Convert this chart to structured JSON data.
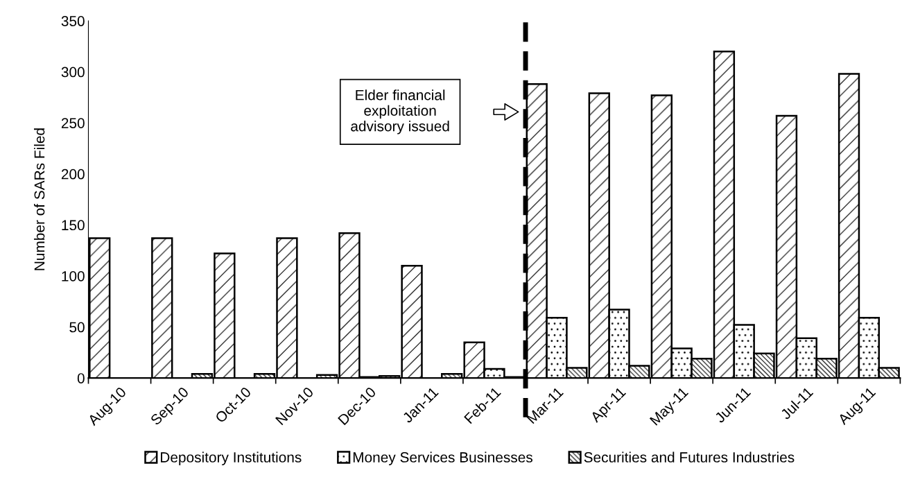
{
  "chart_data": {
    "type": "bar",
    "categories": [
      "Aug-10",
      "Sep-10",
      "Oct-10",
      "Nov-10",
      "Dec-10",
      "Jan-11",
      "Feb-11",
      "Mar-11",
      "Apr-11",
      "May-11",
      "Jun-11",
      "Jul-11",
      "Aug-11"
    ],
    "series": [
      {
        "name": "Depository Institutions",
        "color": "#000000",
        "values": [
          137,
          137,
          122,
          137,
          142,
          110,
          35,
          288,
          279,
          277,
          320,
          257,
          298
        ]
      },
      {
        "name": "Money Services Businesses",
        "color": "#000000",
        "values": [
          0,
          0,
          0,
          0,
          1,
          0,
          9,
          59,
          67,
          29,
          52,
          39,
          59
        ]
      },
      {
        "name": "Securities and Futures Industries",
        "color": "#000000",
        "values": [
          0,
          4,
          4,
          3,
          2,
          4,
          1,
          10,
          12,
          19,
          24,
          19,
          10
        ]
      }
    ],
    "ylabel": "Number of SARs Filed",
    "ylim": [
      0,
      350
    ],
    "yticks": [
      0,
      50,
      100,
      150,
      200,
      250,
      300,
      350
    ],
    "annotations": [
      "Elder financial\nexploitation\nadvisory issued"
    ],
    "legend": "bottom",
    "grid": false
  }
}
